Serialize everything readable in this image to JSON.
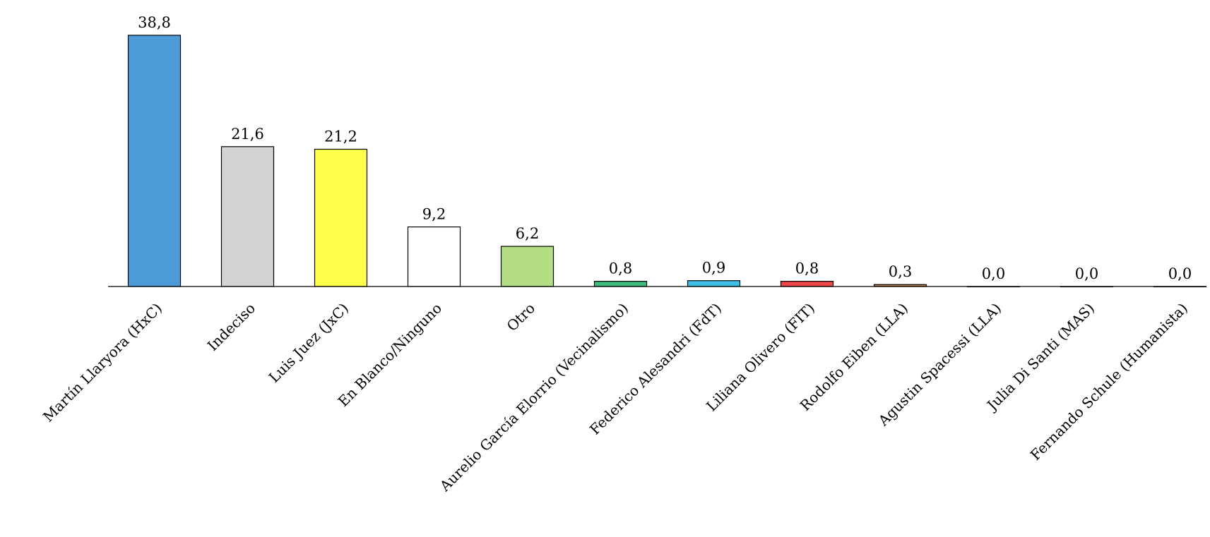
{
  "chart_data": {
    "type": "bar",
    "title": "",
    "xlabel": "",
    "ylabel": "",
    "ylim": [
      0,
      38.8
    ],
    "grid": false,
    "legend": "none",
    "decimal_separator": ",",
    "categories": [
      "Martín Llaryora (HxC)",
      "Indeciso",
      "Luis Juez (JxC)",
      "En Blanco/Ninguno",
      "Otro",
      "Aurelio García Elorrio (Vecinalismo)",
      "Federico Alesandri (FdT)",
      "Liliana Olivero (FIT)",
      "Rodolfo Eiben (LLA)",
      "Agustin Spacessi (LLA)",
      "Julia Di Santi (MAS)",
      "Fernando Schule (Humanista)"
    ],
    "values": [
      38.8,
      21.6,
      21.2,
      9.2,
      6.2,
      0.8,
      0.9,
      0.8,
      0.3,
      0.0,
      0.0,
      0.0
    ],
    "value_labels": [
      "38,8",
      "21,6",
      "21,2",
      "9,2",
      "6,2",
      "0,8",
      "0,9",
      "0,8",
      "0,3",
      "0,0",
      "0,0",
      "0,0"
    ],
    "colors": [
      "#4c9bd6",
      "#d3d3d3",
      "#ffff4c",
      "#ffffff",
      "#b4de84",
      "#3dbd7d",
      "#3fbfe8",
      "#f04848",
      "#c08850",
      "#111111",
      "#111111",
      "#111111"
    ]
  }
}
